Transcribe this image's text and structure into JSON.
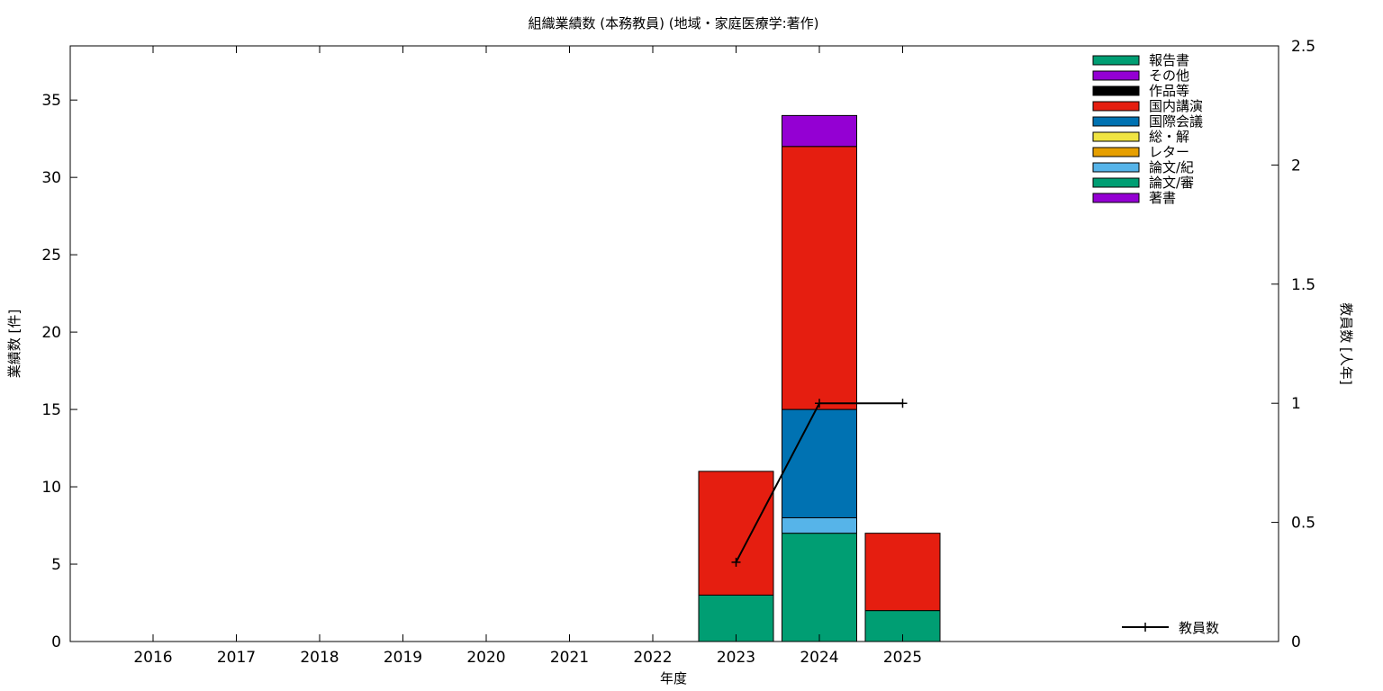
{
  "chart_data": {
    "type": "bar",
    "stacked": true,
    "title": "組織業績数 (本務教員) (地域・家庭医療学:著作)",
    "xlabel": "年度",
    "ylabel": "業績数 [件]",
    "y2label": "教員数 [人年]",
    "categories": [
      "2016",
      "2017",
      "2018",
      "2019",
      "2020",
      "2021",
      "2022",
      "2023",
      "2024",
      "2025"
    ],
    "ylim": [
      0,
      38.5
    ],
    "yticks": [
      "0",
      "5",
      "10",
      "15",
      "20",
      "25",
      "30",
      "35"
    ],
    "y2lim": [
      0,
      2.5
    ],
    "y2ticks": [
      "0",
      "0.5",
      "1",
      "1.5",
      "2",
      "2.5"
    ],
    "grid": false,
    "legend_position": "top-right",
    "series": [
      {
        "name": "著書",
        "color": "#9400d3",
        "values": [
          0,
          0,
          0,
          0,
          0,
          0,
          0,
          0,
          0,
          0
        ]
      },
      {
        "name": "論文/審",
        "color": "#009e73",
        "values": [
          0,
          0,
          0,
          0,
          0,
          0,
          0,
          3,
          7,
          2
        ]
      },
      {
        "name": "論文/紀",
        "color": "#56b4e9",
        "values": [
          0,
          0,
          0,
          0,
          0,
          0,
          0,
          0,
          1,
          0
        ]
      },
      {
        "name": "レター",
        "color": "#e69f00",
        "values": [
          0,
          0,
          0,
          0,
          0,
          0,
          0,
          0,
          0,
          0
        ]
      },
      {
        "name": "総・解",
        "color": "#f0e442",
        "values": [
          0,
          0,
          0,
          0,
          0,
          0,
          0,
          0,
          0,
          0
        ]
      },
      {
        "name": "国際会議",
        "color": "#0072b2",
        "values": [
          0,
          0,
          0,
          0,
          0,
          0,
          0,
          0,
          7,
          0
        ]
      },
      {
        "name": "国内講演",
        "color": "#e51e10",
        "values": [
          0,
          0,
          0,
          0,
          0,
          0,
          0,
          8,
          17,
          5
        ]
      },
      {
        "name": "作品等",
        "color": "#000000",
        "values": [
          0,
          0,
          0,
          0,
          0,
          0,
          0,
          0,
          0,
          0
        ]
      },
      {
        "name": "その他",
        "color": "#9400d3",
        "values": [
          0,
          0,
          0,
          0,
          0,
          0,
          0,
          0,
          2,
          0
        ]
      },
      {
        "name": "報告書",
        "color": "#009e73",
        "values": [
          0,
          0,
          0,
          0,
          0,
          0,
          0,
          0,
          0,
          0
        ]
      }
    ],
    "line_series": {
      "name": "教員数",
      "axis": "y2",
      "color": "#000000",
      "points": [
        [
          "2023",
          0.333
        ],
        [
          "2024",
          1
        ],
        [
          "2025",
          1
        ]
      ]
    }
  }
}
